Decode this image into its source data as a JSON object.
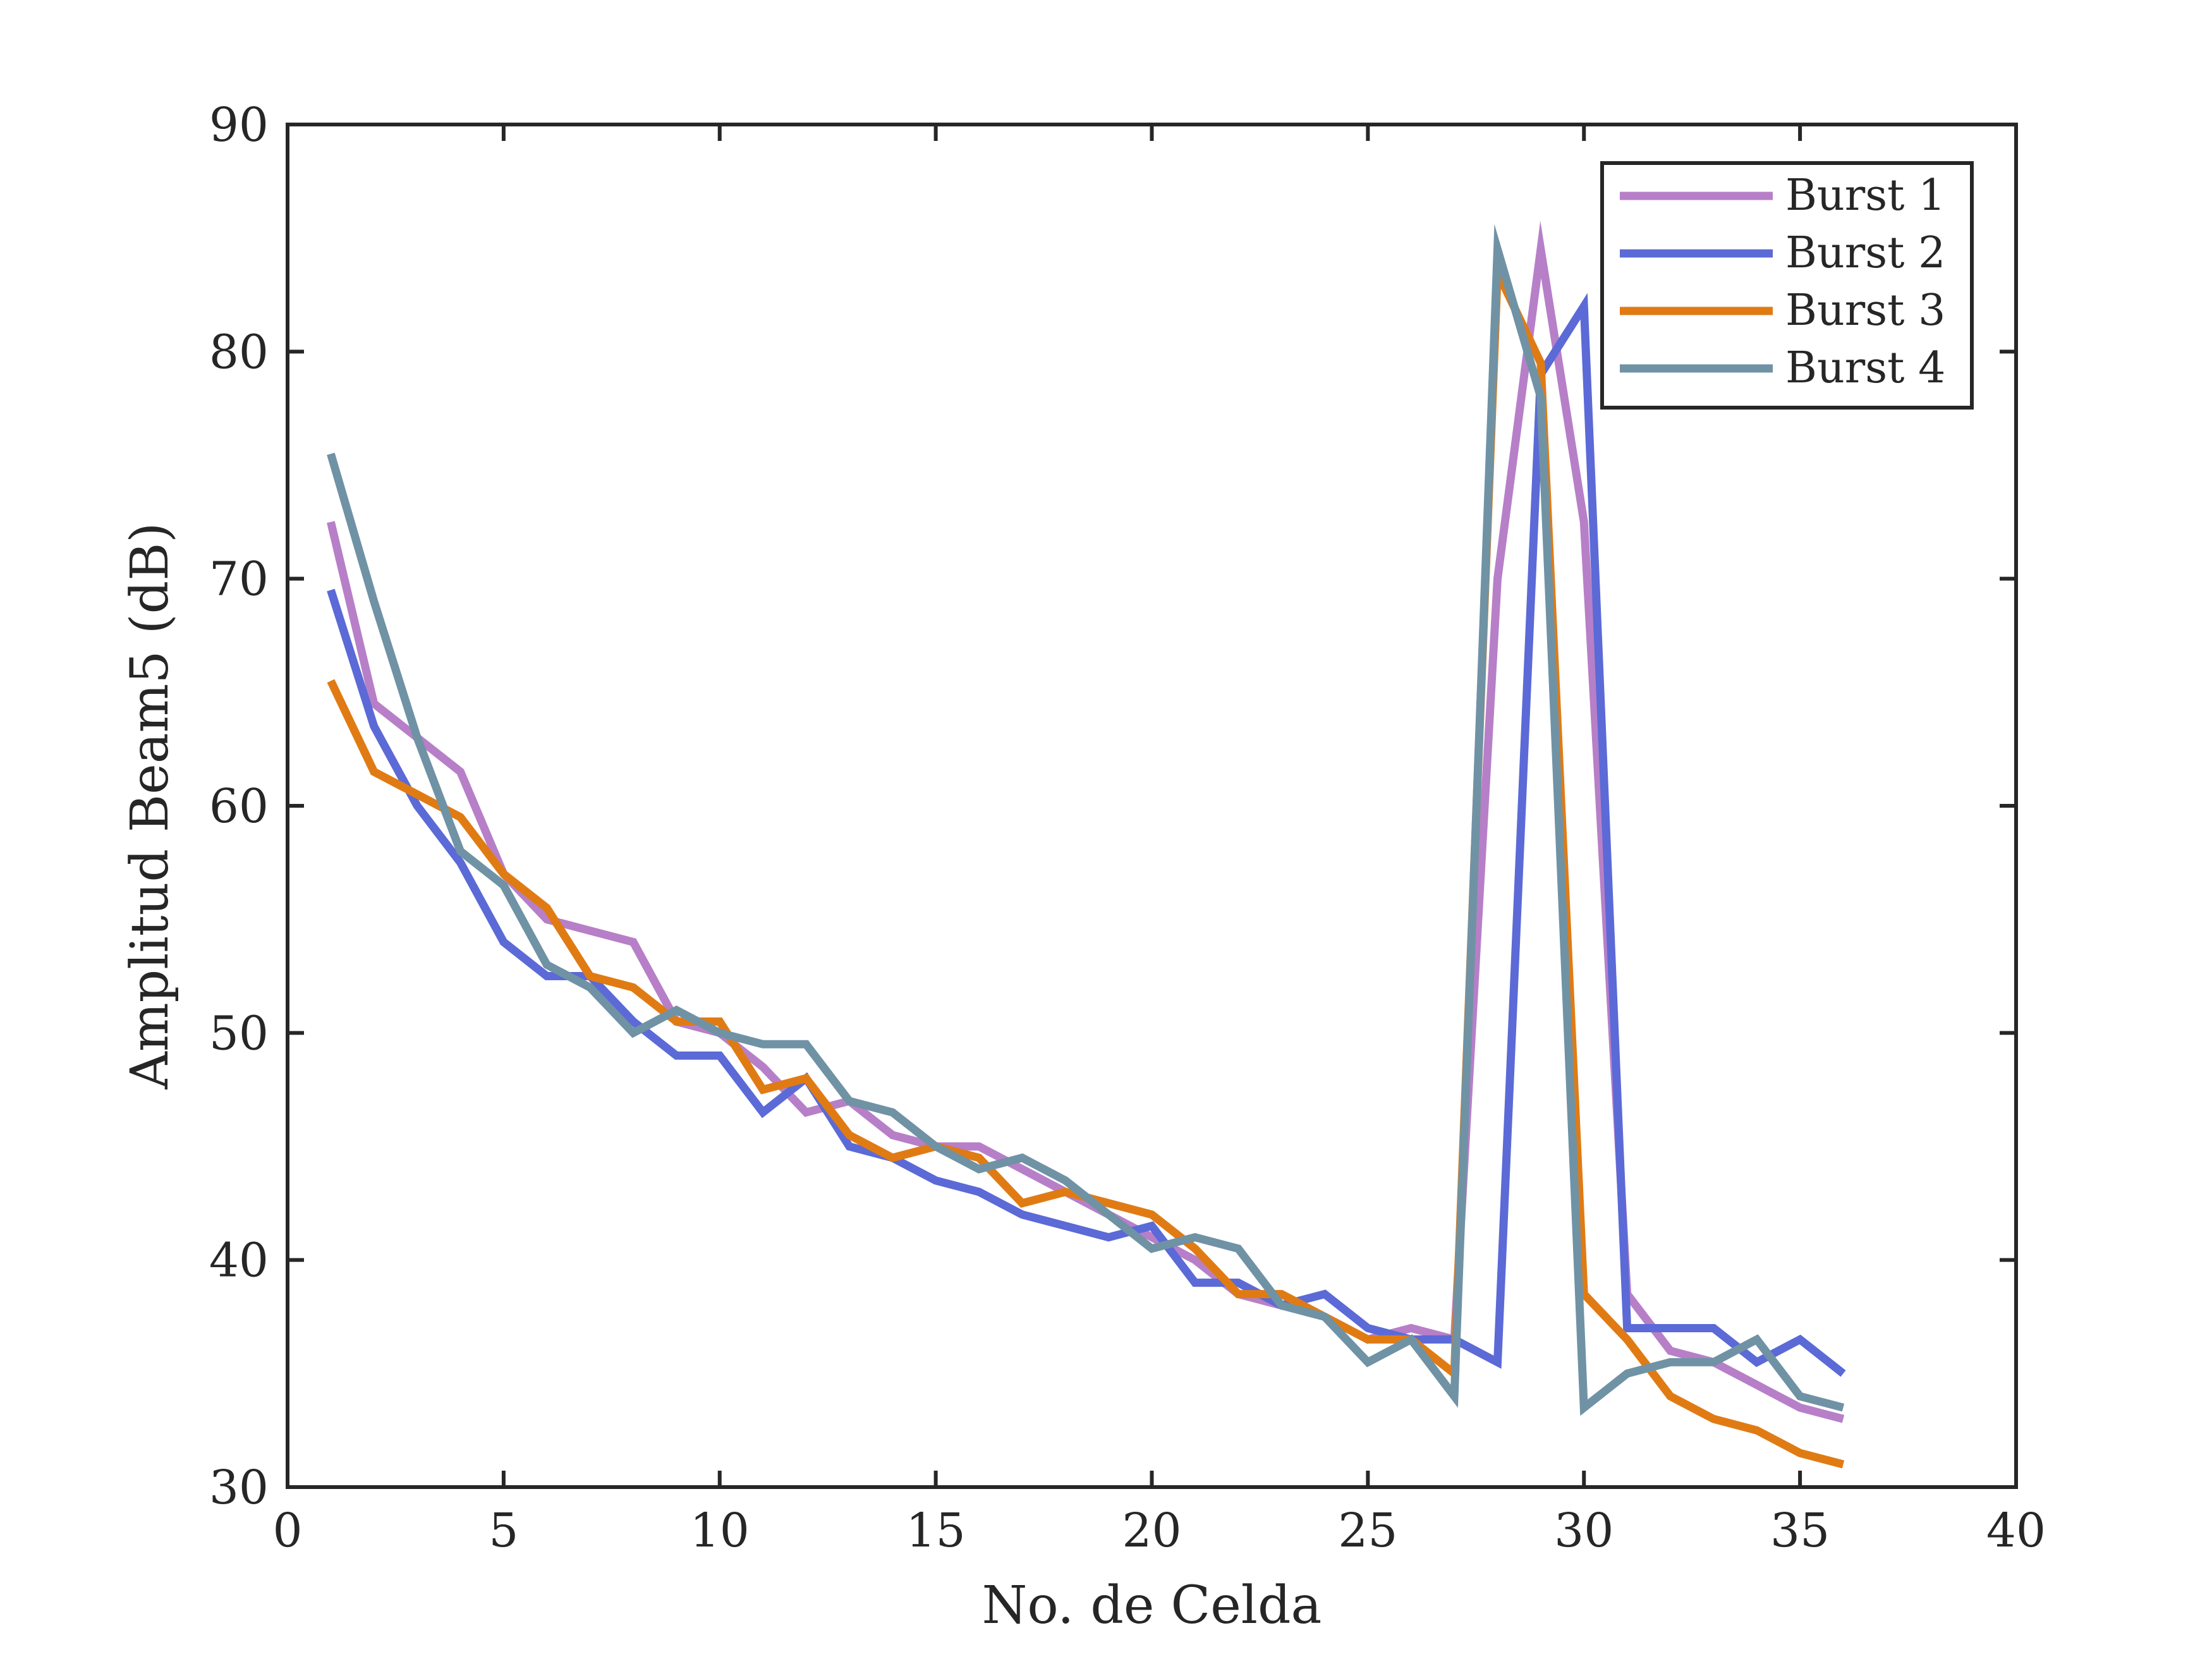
{
  "chart_data": {
    "type": "line",
    "title": "",
    "xlabel": "No. de Celda",
    "ylabel": "Amplitud Beam5 (dB)",
    "xlim": [
      0,
      40
    ],
    "ylim": [
      30,
      90
    ],
    "xticks": [
      0,
      5,
      10,
      15,
      20,
      25,
      30,
      35,
      40
    ],
    "yticks": [
      30,
      40,
      50,
      60,
      70,
      80,
      90
    ],
    "grid": false,
    "legend_position": "top-right",
    "x": [
      1,
      2,
      3,
      4,
      5,
      6,
      7,
      8,
      9,
      10,
      11,
      12,
      13,
      14,
      15,
      16,
      17,
      18,
      19,
      20,
      21,
      22,
      23,
      24,
      25,
      26,
      27,
      28,
      29,
      30,
      31,
      32,
      33,
      34,
      35,
      36
    ],
    "series": [
      {
        "name": "Burst 1",
        "color": "#b77fc8",
        "values": [
          72.5,
          64.5,
          63,
          61.5,
          57,
          55,
          54.5,
          54,
          50.5,
          50,
          48.5,
          46.5,
          47,
          45.5,
          45,
          45,
          44,
          43,
          42,
          41,
          40,
          38.5,
          38,
          37.5,
          36.5,
          37,
          36.5,
          70,
          84.5,
          72.5,
          38.5,
          36,
          35.5,
          34.5,
          33.5,
          33
        ]
      },
      {
        "name": "Burst 2",
        "color": "#5b6ad6",
        "values": [
          69.5,
          63.5,
          60,
          57.5,
          54,
          52.5,
          52.5,
          50.5,
          49,
          49,
          46.5,
          48,
          45,
          44.5,
          43.5,
          43,
          42,
          41.5,
          41,
          41.5,
          39,
          39,
          38,
          38.5,
          37,
          36.5,
          36.5,
          35.5,
          79,
          82,
          37,
          37,
          37,
          35.5,
          36.5,
          35
        ]
      },
      {
        "name": "Burst 3",
        "color": "#e07b14",
        "values": [
          65.5,
          61.5,
          60.5,
          59.5,
          57,
          55.5,
          52.5,
          52,
          50.5,
          50.5,
          47.5,
          48,
          45.5,
          44.5,
          45,
          44.5,
          42.5,
          43,
          42.5,
          42,
          40.5,
          38.5,
          38.5,
          37.5,
          36.5,
          36.5,
          35,
          83.5,
          79.5,
          38.5,
          36.5,
          34,
          33,
          32.5,
          31.5,
          31
        ]
      },
      {
        "name": "Burst 4",
        "color": "#7092a5",
        "values": [
          75.5,
          69,
          63,
          58,
          56.5,
          53,
          52,
          50,
          51,
          50,
          49.5,
          49.5,
          47,
          46.5,
          45,
          44,
          44.5,
          43.5,
          42,
          40.5,
          41,
          40.5,
          38,
          37.5,
          35.5,
          36.5,
          34,
          84.5,
          78,
          33.5,
          35,
          35.5,
          35.5,
          36.5,
          34,
          33.5
        ]
      }
    ]
  }
}
